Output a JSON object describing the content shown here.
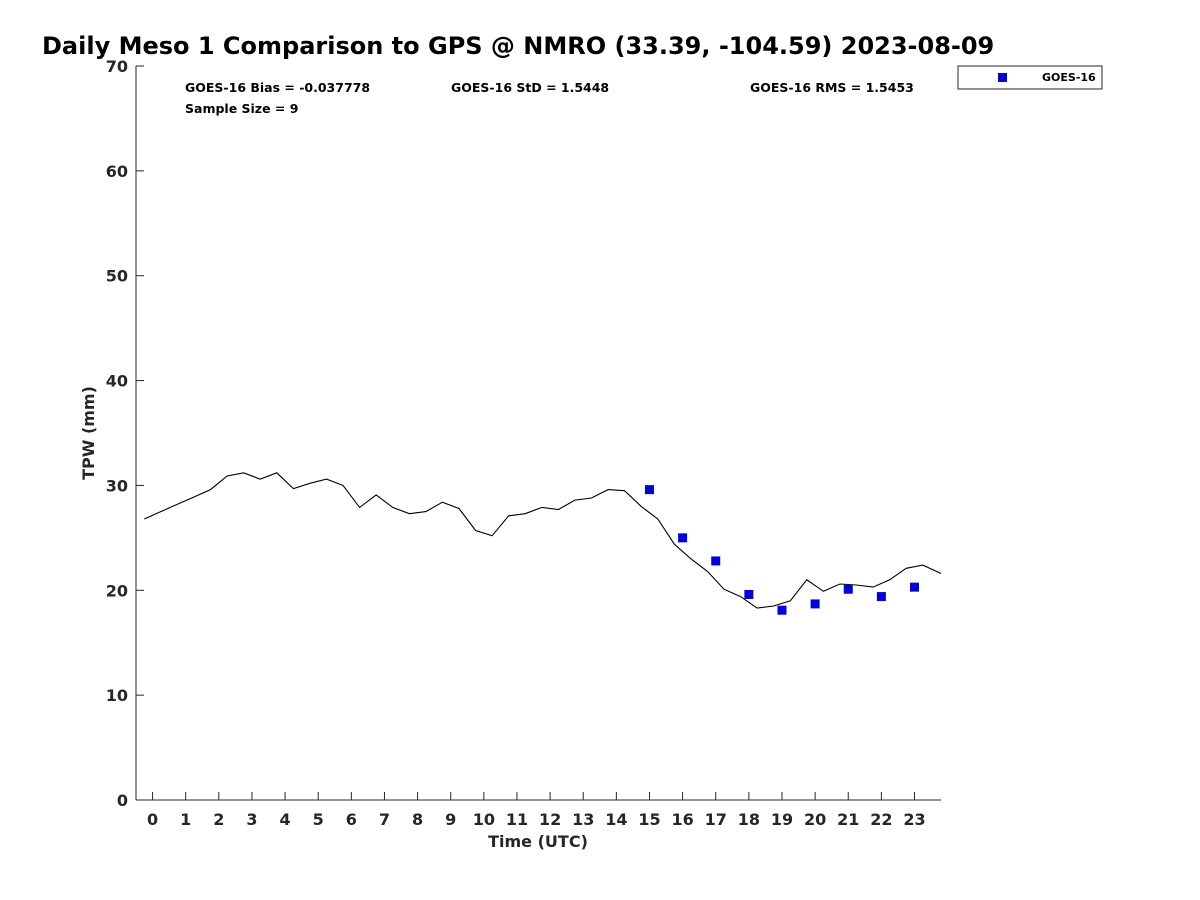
{
  "chart_data": {
    "type": "line",
    "title": "Daily Meso 1 Comparison to GPS @ NMRO (33.39, -104.59) 2023-08-09",
    "xlabel": "Time (UTC)",
    "ylabel": "TPW (mm)",
    "xlim": [
      -0.5,
      23.8
    ],
    "ylim": [
      0,
      70
    ],
    "xticks": [
      "0",
      "1",
      "2",
      "3",
      "4",
      "5",
      "6",
      "7",
      "8",
      "9",
      "10",
      "11",
      "12",
      "13",
      "14",
      "15",
      "16",
      "17",
      "18",
      "19",
      "20",
      "21",
      "22",
      "23"
    ],
    "yticks": [
      "0",
      "10",
      "20",
      "30",
      "40",
      "50",
      "60",
      "70"
    ],
    "grid": false,
    "legend_position": "top-right",
    "stats": {
      "bias": "GOES-16 Bias = -0.037778",
      "std": "GOES-16 StD = 1.5448",
      "rms": "GOES-16 RMS = 1.5453",
      "sample_size": "Sample Size = 9"
    },
    "series": [
      {
        "color": "#000000",
        "style": "line",
        "points": [
          [
            -0.25,
            26.8
          ],
          [
            0.25,
            27.5
          ],
          [
            0.75,
            28.2
          ],
          [
            1.25,
            28.9
          ],
          [
            1.75,
            29.6
          ],
          [
            2.25,
            30.9
          ],
          [
            2.75,
            31.2
          ],
          [
            3.25,
            30.6
          ],
          [
            3.75,
            31.2
          ],
          [
            4.25,
            29.7
          ],
          [
            4.75,
            30.2
          ],
          [
            5.25,
            30.6
          ],
          [
            5.75,
            30.0
          ],
          [
            6.25,
            27.9
          ],
          [
            6.75,
            29.1
          ],
          [
            7.25,
            27.9
          ],
          [
            7.75,
            27.3
          ],
          [
            8.25,
            27.5
          ],
          [
            8.75,
            28.4
          ],
          [
            9.25,
            27.8
          ],
          [
            9.75,
            25.7
          ],
          [
            10.25,
            25.2
          ],
          [
            10.75,
            27.1
          ],
          [
            11.25,
            27.3
          ],
          [
            11.75,
            27.9
          ],
          [
            12.25,
            27.7
          ],
          [
            12.75,
            28.6
          ],
          [
            13.25,
            28.8
          ],
          [
            13.75,
            29.6
          ],
          [
            14.25,
            29.5
          ],
          [
            14.75,
            28.0
          ],
          [
            15.25,
            26.8
          ],
          [
            15.75,
            24.4
          ],
          [
            16.25,
            23.0
          ],
          [
            16.75,
            21.8
          ],
          [
            17.25,
            20.1
          ],
          [
            17.75,
            19.4
          ],
          [
            18.25,
            18.3
          ],
          [
            18.75,
            18.5
          ],
          [
            19.25,
            19.0
          ],
          [
            19.75,
            21.0
          ],
          [
            20.25,
            19.9
          ],
          [
            20.75,
            20.6
          ],
          [
            21.25,
            20.5
          ],
          [
            21.75,
            20.3
          ],
          [
            22.25,
            21.0
          ],
          [
            22.75,
            22.1
          ],
          [
            23.25,
            22.4
          ],
          [
            23.8,
            21.6
          ]
        ]
      },
      {
        "name": "GOES-16",
        "color": "#0000dd",
        "style": "square-marker",
        "x": [
          15,
          16,
          17,
          18,
          19,
          20,
          21,
          22,
          23
        ],
        "y": [
          29.6,
          25.0,
          22.8,
          19.6,
          18.1,
          18.7,
          20.1,
          19.4,
          20.3
        ]
      }
    ]
  }
}
